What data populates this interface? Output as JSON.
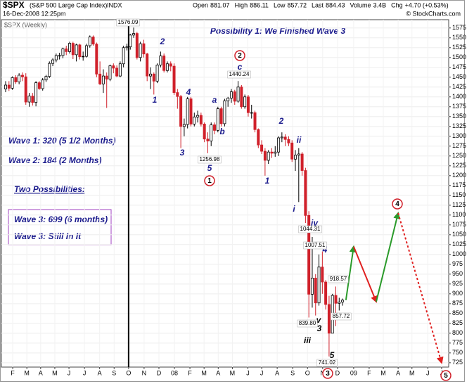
{
  "chart_data": {
    "type": "candlestick",
    "title": "Possibility 1:  We Finished Wave 3",
    "header": {
      "symbol": "$SPX",
      "name": "(S&P 500 Large Cap Index)",
      "exchange": "INDX",
      "date": "16-Dec-2008 12:25pm",
      "copyright": "© StockCharts.com",
      "chart_label": "$SPX (Weekly)",
      "quote": [
        {
          "label": "Open",
          "value": "881.07"
        },
        {
          "label": "High",
          "value": "886.11"
        },
        {
          "label": "Low",
          "value": "857.72"
        },
        {
          "label": "Last",
          "value": "884.43"
        },
        {
          "label": "Volume",
          "value": "3.4B"
        },
        {
          "label": "Chg",
          "value": "+4.70 (+0.53%)"
        }
      ]
    },
    "notes": [
      "Wave 1:  320 (5 1/2 Months)",
      "Wave 2:  184 (2 Months)",
      "Two Possibilities:",
      "Wave 3:  699 (6 months)",
      "Wave 3:  Still In It"
    ],
    "open": [
      1420,
      1430,
      1422,
      1449,
      1438,
      1455,
      1451,
      1387,
      1402,
      1386,
      1436,
      1421,
      1443,
      1452,
      1485,
      1494,
      1505,
      1505,
      1522,
      1515,
      1536,
      1507,
      1532,
      1502,
      1503,
      1530,
      1552,
      1534,
      1458,
      1433,
      1453,
      1445,
      1479,
      1473,
      1453,
      1484,
      1525,
      1527,
      1557,
      1561,
      1500,
      1535,
      1509,
      1453,
      1458,
      1440,
      1481,
      1504,
      1467,
      1484,
      1478,
      1411,
      1401,
      1325,
      1330,
      1395,
      1331,
      1349,
      1353,
      1331,
      1293,
      1288,
      1329,
      1315,
      1370,
      1332,
      1390,
      1397,
      1413,
      1389,
      1425,
      1375,
      1400,
      1360,
      1360,
      1317,
      1278,
      1262,
      1239,
      1260,
      1257,
      1260,
      1296,
      1298,
      1292,
      1283,
      1242,
      1252,
      1255,
      1213,
      1099,
      899,
      940,
      877,
      968,
      930,
      873,
      800,
      896,
      876,
      879
    ],
    "high": [
      1440,
      1440,
      1452,
      1455,
      1460,
      1462,
      1460,
      1410,
      1410,
      1440,
      1440,
      1448,
      1456,
      1490,
      1498,
      1510,
      1512,
      1525,
      1530,
      1540,
      1540,
      1535,
      1535,
      1515,
      1535,
      1556,
      1556,
      1538,
      1490,
      1470,
      1462,
      1482,
      1485,
      1480,
      1490,
      1530,
      1535,
      1560,
      1576.09,
      1565,
      1540,
      1545,
      1512,
      1475,
      1462,
      1485,
      1515,
      1510,
      1490,
      1490,
      1485,
      1420,
      1405,
      1345,
      1400,
      1400,
      1360,
      1365,
      1360,
      1335,
      1310,
      1335,
      1335,
      1375,
      1375,
      1395,
      1400,
      1420,
      1418,
      1440.24,
      1430,
      1406,
      1405,
      1380,
      1365,
      1320,
      1290,
      1270,
      1265,
      1270,
      1275,
      1300,
      1310,
      1305,
      1300,
      1290,
      1265,
      1270,
      1260,
      1220,
      1110,
      1044.31,
      950,
      1000,
      1007.51,
      935,
      895,
      900,
      918.57,
      890,
      888
    ],
    "low": [
      1412,
      1415,
      1418,
      1433,
      1432,
      1440,
      1380,
      1375,
      1378,
      1376,
      1418,
      1416,
      1438,
      1448,
      1478,
      1488,
      1495,
      1498,
      1506,
      1510,
      1496,
      1490,
      1495,
      1492,
      1500,
      1525,
      1530,
      1450,
      1430,
      1410,
      1372,
      1440,
      1460,
      1450,
      1450,
      1475,
      1518,
      1520,
      1550,
      1495,
      1490,
      1500,
      1440,
      1420,
      1406,
      1435,
      1475,
      1462,
      1462,
      1465,
      1405,
      1370,
      1270,
      1300,
      1320,
      1325,
      1325,
      1335,
      1325,
      1285,
      1256.98,
      1275,
      1305,
      1310,
      1325,
      1325,
      1375,
      1385,
      1380,
      1385,
      1370,
      1370,
      1350,
      1345,
      1310,
      1270,
      1255,
      1200,
      1230,
      1245,
      1248,
      1250,
      1285,
      1275,
      1275,
      1235,
      1212,
      1133,
      1200,
      1080,
      839.8,
      865,
      845,
      870,
      900,
      860,
      741.02,
      800,
      818,
      857.72,
      870
    ],
    "close": [
      1430,
      1422,
      1449,
      1438,
      1455,
      1451,
      1387,
      1402,
      1386,
      1436,
      1421,
      1443,
      1452,
      1485,
      1494,
      1505,
      1505,
      1522,
      1515,
      1536,
      1507,
      1532,
      1502,
      1503,
      1530,
      1552,
      1534,
      1458,
      1433,
      1453,
      1445,
      1479,
      1473,
      1453,
      1484,
      1525,
      1527,
      1557,
      1561,
      1500,
      1535,
      1509,
      1453,
      1458,
      1440,
      1481,
      1504,
      1467,
      1484,
      1478,
      1411,
      1401,
      1325,
      1330,
      1395,
      1331,
      1349,
      1353,
      1331,
      1293,
      1288,
      1329,
      1315,
      1370,
      1332,
      1390,
      1397,
      1413,
      1389,
      1425,
      1375,
      1400,
      1360,
      1360,
      1317,
      1278,
      1262,
      1239,
      1260,
      1257,
      1260,
      1296,
      1298,
      1292,
      1283,
      1242,
      1252,
      1255,
      1213,
      1099,
      899,
      940,
      877,
      968,
      930,
      873,
      800,
      896,
      876,
      879,
      884
    ],
    "up_color": "#000000",
    "down_color": "#d0202a",
    "xlim": [
      -1.25,
      131.5
    ],
    "ylim": [
      714,
      1596
    ],
    "xticks": [
      {
        "value": 2.1,
        "label": "F"
      },
      {
        "value": 6.3,
        "label": "M"
      },
      {
        "value": 10.4,
        "label": "A"
      },
      {
        "value": 14.6,
        "label": "M"
      },
      {
        "value": 18.8,
        "label": "J"
      },
      {
        "value": 23.4,
        "label": "J"
      },
      {
        "value": 27.9,
        "label": "A"
      },
      {
        "value": 32.2,
        "label": "S"
      },
      {
        "value": 36.5,
        "label": "O"
      },
      {
        "value": 41.1,
        "label": "N"
      },
      {
        "value": 45.5,
        "label": "D"
      },
      {
        "value": 50.1,
        "label": "08"
      },
      {
        "value": 54.7,
        "label": "F"
      },
      {
        "value": 58.9,
        "label": "M"
      },
      {
        "value": 63.1,
        "label": "A"
      },
      {
        "value": 67.3,
        "label": "M"
      },
      {
        "value": 71.9,
        "label": "J"
      },
      {
        "value": 76,
        "label": "J"
      },
      {
        "value": 80.6,
        "label": "A"
      },
      {
        "value": 85.2,
        "label": "S"
      },
      {
        "value": 89.6,
        "label": "O"
      },
      {
        "value": 94.1,
        "label": "N"
      },
      {
        "value": 98.5,
        "label": "D"
      },
      {
        "value": 103.3,
        "label": "09"
      },
      {
        "value": 107.9,
        "label": "F"
      },
      {
        "value": 112.1,
        "label": "M"
      },
      {
        "value": 116.5,
        "label": "A"
      },
      {
        "value": 120.6,
        "label": "M"
      },
      {
        "value": 125.3,
        "label": "J"
      },
      {
        "value": 129.4,
        "label": "J"
      }
    ],
    "yticks": [
      725,
      750,
      775,
      800,
      825,
      850,
      875,
      900,
      925,
      950,
      975,
      1000,
      1025,
      1050,
      1075,
      1100,
      1125,
      1150,
      1175,
      1200,
      1225,
      1250,
      1275,
      1300,
      1325,
      1350,
      1375,
      1400,
      1425,
      1450,
      1475,
      1500,
      1525,
      1550,
      1575
    ],
    "grid": true,
    "projection": [
      {
        "color": "#2a9a2a",
        "dashed": false,
        "x": [
          101,
          103.3
        ],
        "values": [
          884,
          1020
        ]
      },
      {
        "color": "#e02020",
        "dashed": false,
        "x": [
          103.3,
          110
        ],
        "values": [
          1020,
          880
        ]
      },
      {
        "color": "#2a9a2a",
        "dashed": false,
        "x": [
          110,
          116.5
        ],
        "values": [
          880,
          1105
        ]
      },
      {
        "color": "#e02020",
        "dashed": true,
        "x": [
          116.5,
          129.4
        ],
        "values": [
          1105,
          725
        ]
      }
    ],
    "wave_labels": [
      "2",
      "1",
      "4",
      "a",
      "b",
      "3",
      "5",
      "c",
      "2",
      "ii",
      "1",
      "i",
      "iv",
      "4",
      "v",
      "3",
      "iii",
      "5"
    ],
    "circled_labels": [
      "1",
      "2",
      "3",
      "4",
      "5"
    ],
    "price_labels": [
      "1576.09",
      "1440.24",
      "1256.98",
      "1044.31",
      "1007.51",
      "918.57",
      "839.80",
      "857.72",
      "741.02"
    ]
  }
}
